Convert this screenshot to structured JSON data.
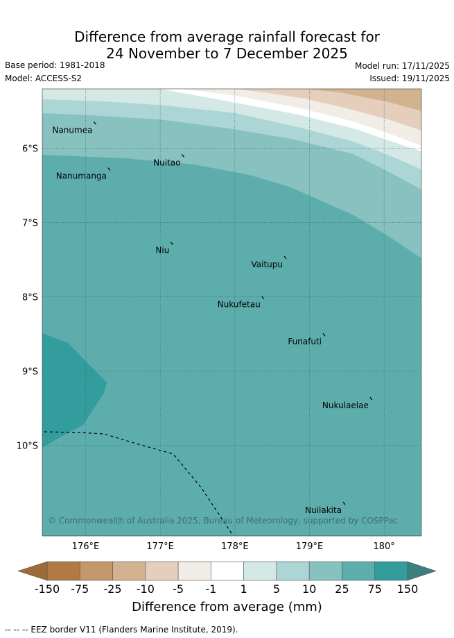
{
  "header": {
    "title_line1": "Difference from average rainfall forecast for",
    "title_line2": "24 November to 7 December 2025",
    "base_period": "Base period: 1981-2018",
    "model": "Model: ACCESS-S2",
    "model_run": "Model run: 17/11/2025",
    "issued": "Issued: 19/11/2025"
  },
  "map": {
    "lon_range": [
      175.42,
      180.5
    ],
    "lat_range": [
      -11.22,
      -5.2
    ],
    "lon_ticks": [
      {
        "value": 176,
        "label": "176°E"
      },
      {
        "value": 177,
        "label": "177°E"
      },
      {
        "value": 178,
        "label": "178°E"
      },
      {
        "value": 179,
        "label": "179°E"
      },
      {
        "value": 180,
        "label": "180°"
      }
    ],
    "lat_ticks": [
      {
        "value": -6,
        "label": "6°S"
      },
      {
        "value": -7,
        "label": "7°S"
      },
      {
        "value": -8,
        "label": "8°S"
      },
      {
        "value": -9,
        "label": "9°S"
      },
      {
        "value": -10,
        "label": "10°S"
      }
    ],
    "places": [
      {
        "name": "Nanumea",
        "lon": 176.13,
        "lat": -5.67
      },
      {
        "name": "Nuitao",
        "lon": 177.31,
        "lat": -6.11
      },
      {
        "name": "Nanumanga",
        "lon": 176.32,
        "lat": -6.29
      },
      {
        "name": "Niu",
        "lon": 177.16,
        "lat": -7.29
      },
      {
        "name": "Vaitupu",
        "lon": 178.68,
        "lat": -7.48
      },
      {
        "name": "Nukufetau",
        "lon": 178.38,
        "lat": -8.02
      },
      {
        "name": "Funafuti",
        "lon": 179.2,
        "lat": -8.52
      },
      {
        "name": "Nukulaelae",
        "lon": 179.83,
        "lat": -9.38
      },
      {
        "name": "Nuilakita",
        "lon": 179.47,
        "lat": -10.79
      }
    ],
    "copyright": "© Commonwealth of Australia 2025, Bureau of Meteorology, supported by COSPPac"
  },
  "colorbar": {
    "ticks": [
      "-150",
      "-75",
      "-25",
      "-10",
      "-5",
      "-1",
      "1",
      "5",
      "10",
      "25",
      "75",
      "150"
    ],
    "colors": [
      "#b07a42",
      "#c4976c",
      "#d3b38f",
      "#e5cfbc",
      "#f1ece6",
      "#ffffff",
      "#d4e8e6",
      "#acd6d5",
      "#87c1c0",
      "#5dadad",
      "#339c9c"
    ],
    "under_color": "#9e6a38",
    "over_color": "#3b7f7f",
    "label": "Difference from average (mm)"
  },
  "legend": {
    "eez_text": "-- -- -- EEZ border V11 (Flanders Marine Institute, 2019)."
  }
}
